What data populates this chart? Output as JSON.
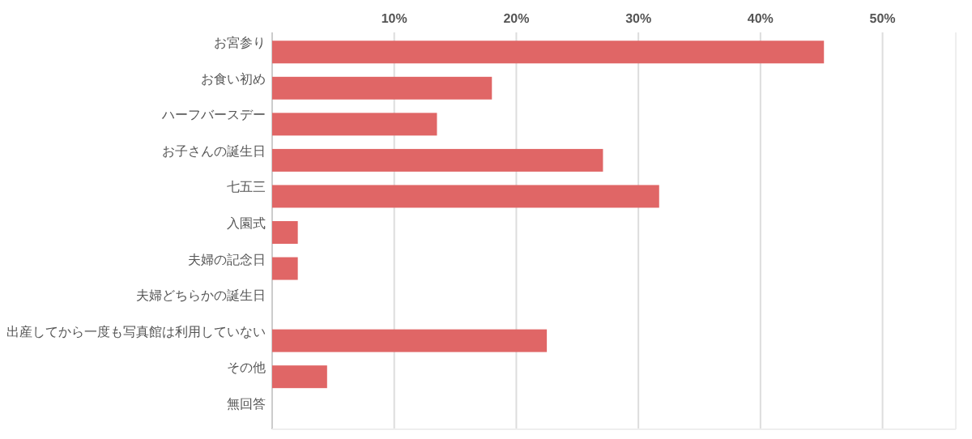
{
  "chart_data": {
    "type": "bar",
    "orientation": "horizontal",
    "categories": [
      "お宮参り",
      "お食い初め",
      "ハーフバースデー",
      "お子さんの誕生日",
      "七五三",
      "入園式",
      "夫婦の記念日",
      "夫婦どちらかの誕生日",
      "出産してから一度も写真館は利用していない",
      "その他",
      "無回答"
    ],
    "values": [
      45.2,
      18.0,
      13.5,
      27.1,
      31.7,
      2.1,
      2.1,
      0,
      22.5,
      4.5,
      0
    ],
    "color": "#e06666",
    "xlim": [
      0,
      56
    ],
    "xticks": [
      {
        "value": 10,
        "label": "10%"
      },
      {
        "value": 20,
        "label": "20%"
      },
      {
        "value": 30,
        "label": "30%"
      },
      {
        "value": 40,
        "label": "40%"
      },
      {
        "value": 50,
        "label": "50%"
      }
    ],
    "grid": "x"
  }
}
